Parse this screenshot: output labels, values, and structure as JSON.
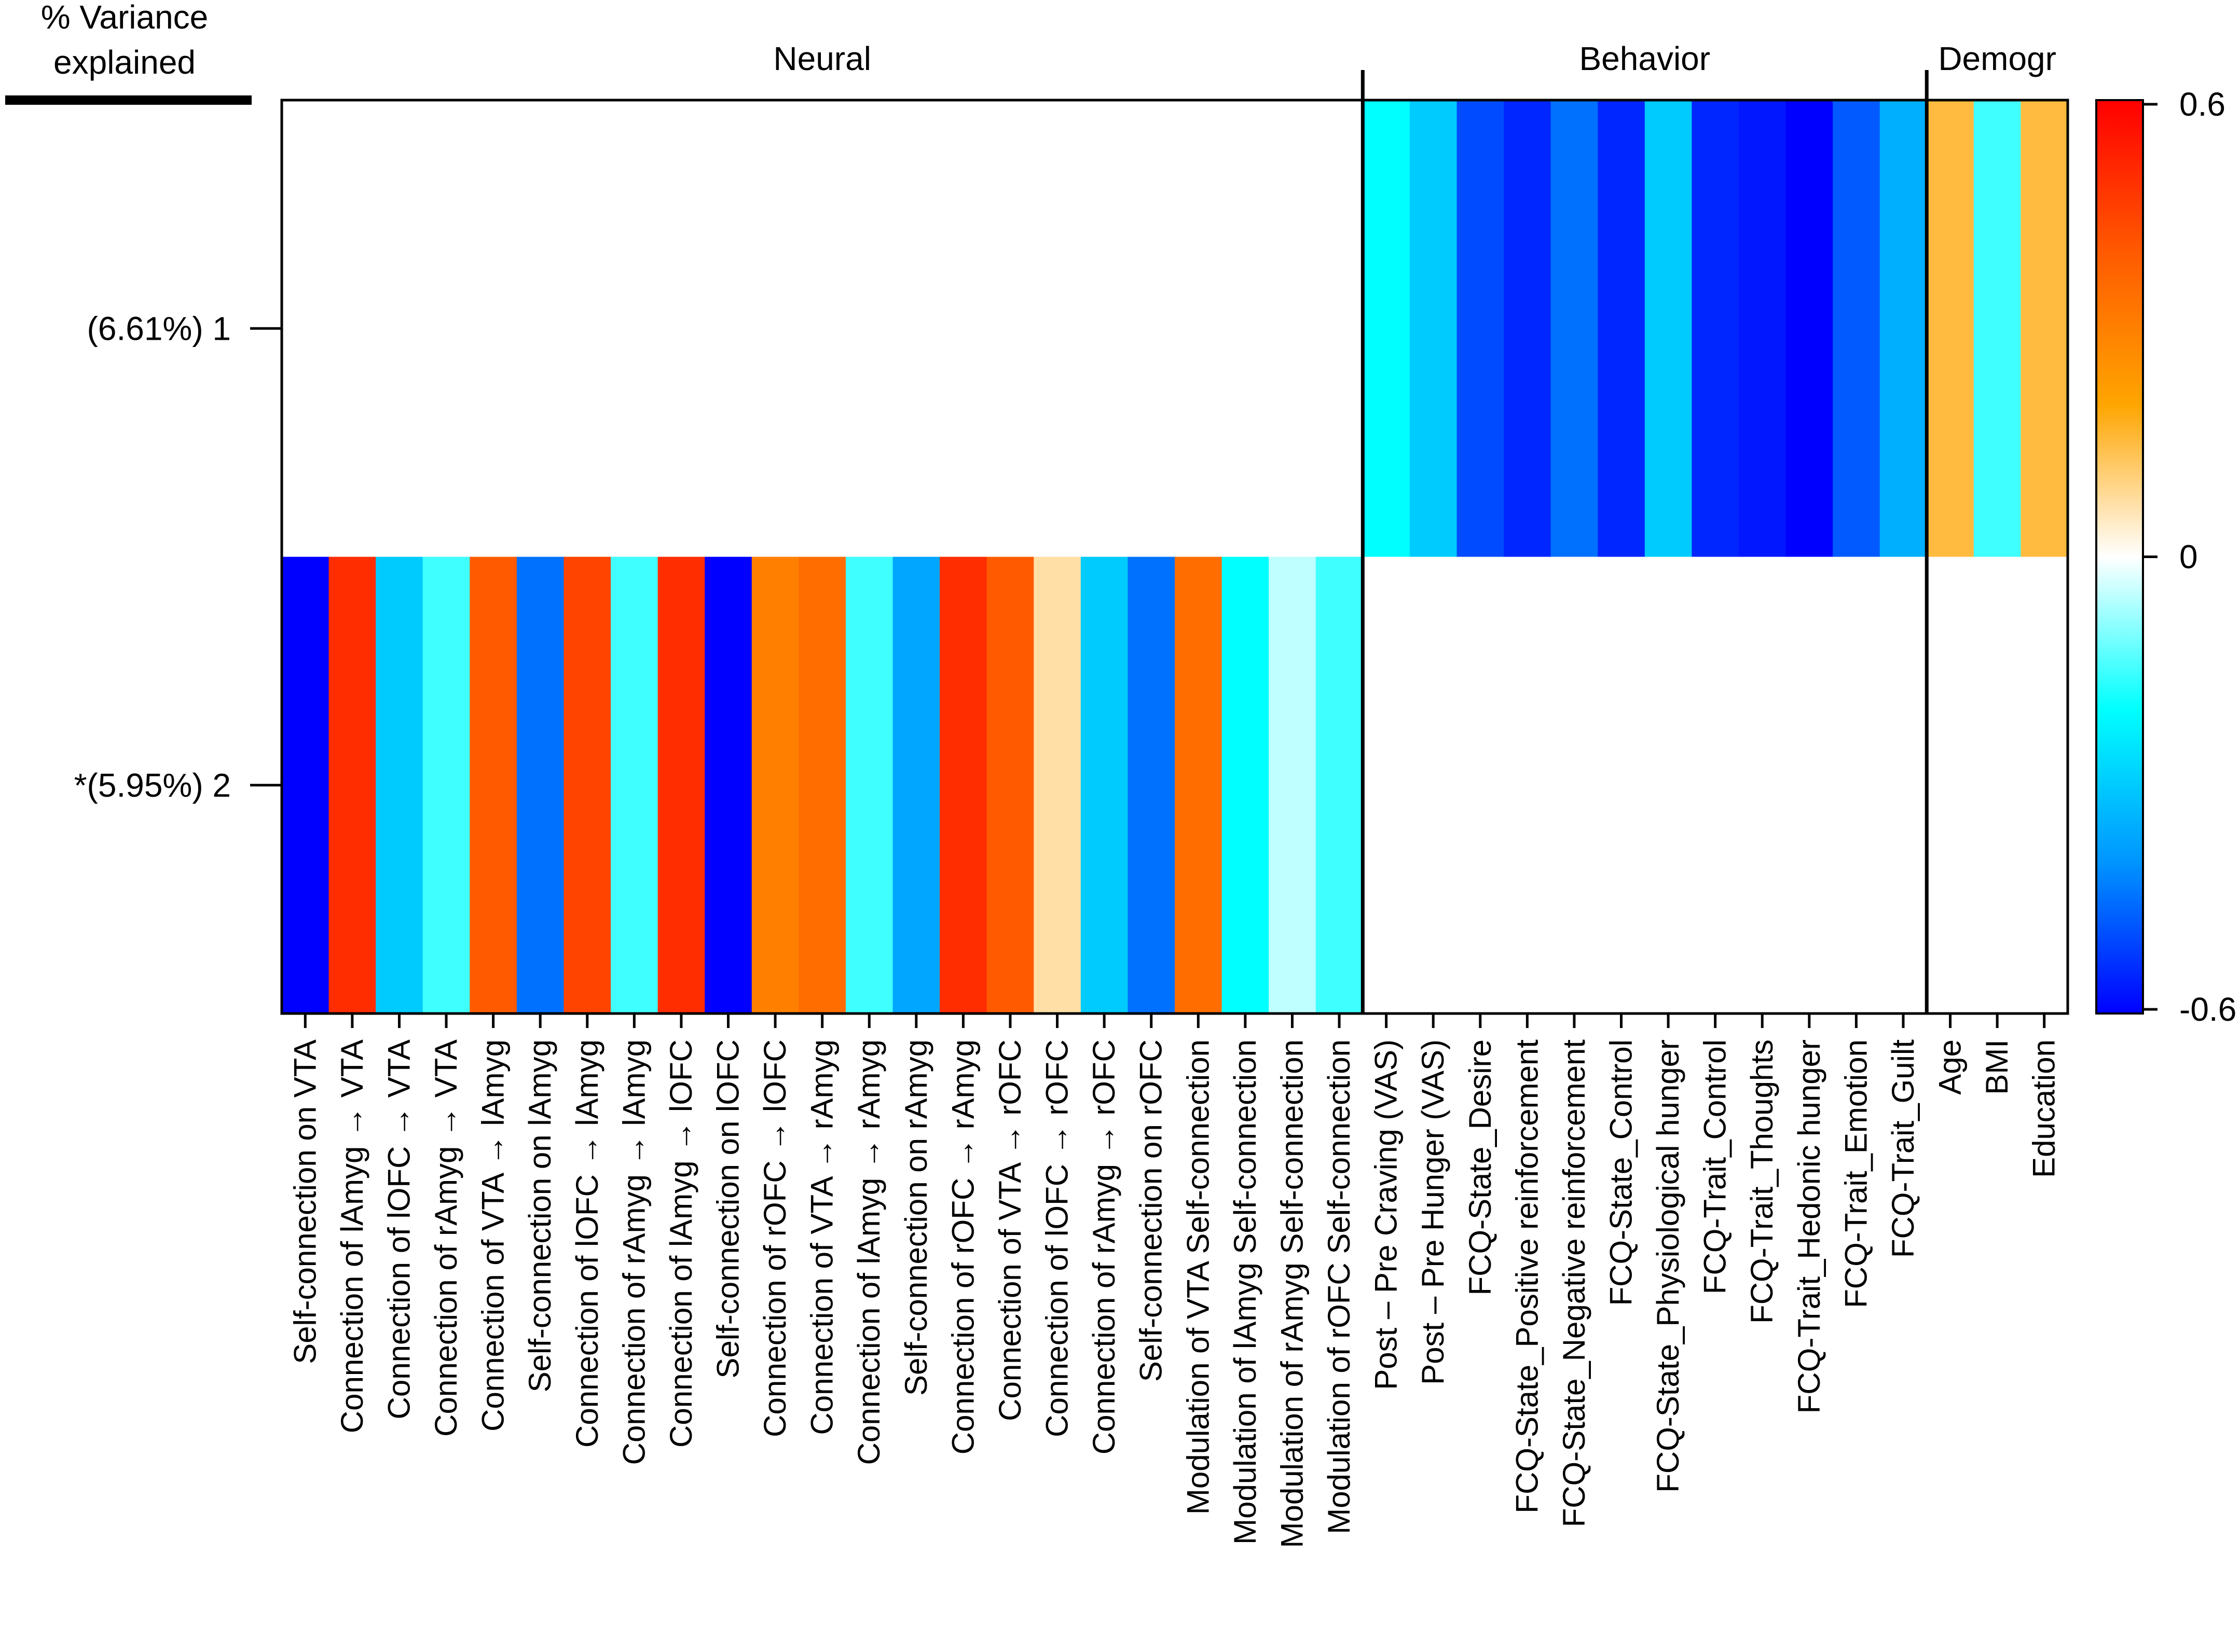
{
  "chart_data": {
    "type": "heatmap",
    "title": "",
    "row_axis_title": [
      "% Variance",
      "explained"
    ],
    "rows": [
      {
        "label": "(6.61%) 1",
        "active_group": "Behavior/Demogr"
      },
      {
        "label": "*(5.95%) 2",
        "active_group": "Neural"
      }
    ],
    "groups": [
      {
        "name": "Neural",
        "count": 23
      },
      {
        "name": "Behavior",
        "count": 12
      },
      {
        "name": "Demogr",
        "count": 3
      }
    ],
    "columns": [
      "Self-connection on VTA",
      "Connection of lAmyg → VTA",
      "Connection of lOFC → VTA",
      "Connection of rAmyg → VTA",
      "Connection of VTA → lAmyg",
      "Self-connection on lAmyg",
      "Connection of lOFC → lAmyg",
      "Connection of rAmyg → lAmyg",
      "Connection of lAmyg → lOFC",
      "Self-connection on lOFC",
      "Connection of rOFC → lOFC",
      "Connection of VTA → rAmyg",
      "Connection of lAmyg → rAmyg",
      "Self-connection on rAmyg",
      "Connection of rOFC → rAmyg",
      "Connection of VTA → rOFC",
      "Connection of lOFC → rOFC",
      "Connection of rAmyg → rOFC",
      "Self-connection on rOFC",
      "Modulation of VTA Self-connection",
      "Modulation of lAmyg Self-connection",
      "Modulation of rAmyg Self-connection",
      "Modulation of rOFC Self-connection",
      "Post – Pre Craving (VAS)",
      "Post – Pre Hunger (VAS)",
      "FCQ-State_Desire",
      "FCQ-State_Positive reinforcement",
      "FCQ-State_Negative reinforcement",
      "FCQ-State_Control",
      "FCQ-State_Physiological hunger",
      "FCQ-Trait_Control",
      "FCQ-Trait_Thoughts",
      "FCQ-Trait_Hedonic hunger",
      "FCQ-Trait_Emotion",
      "FCQ-Trait_Guilt",
      "Age",
      "BMI",
      "Education"
    ],
    "values": [
      [
        0,
        0,
        0,
        0,
        0,
        0,
        0,
        0,
        0,
        0,
        0,
        0,
        0,
        0,
        0,
        0,
        0,
        0,
        0,
        0,
        0,
        0,
        0,
        -0.2,
        -0.3,
        -0.5,
        -0.55,
        -0.45,
        -0.55,
        -0.3,
        -0.55,
        -0.57,
        -0.6,
        -0.48,
        -0.35,
        0.15,
        -0.15,
        0.15
      ],
      [
        -0.6,
        0.5,
        -0.3,
        -0.15,
        0.4,
        -0.45,
        0.45,
        -0.15,
        0.5,
        -0.6,
        0.3,
        0.35,
        -0.15,
        -0.37,
        0.5,
        0.4,
        0.07,
        -0.3,
        -0.45,
        0.35,
        -0.2,
        -0.05,
        -0.15,
        0,
        0,
        0,
        0,
        0,
        0,
        0,
        0,
        0,
        0,
        0,
        0,
        0,
        0,
        0
      ]
    ],
    "colorbar": {
      "min": -0.6,
      "max": 0.6,
      "tick_labels": [
        "0.6",
        "0",
        "-0.6"
      ]
    }
  }
}
